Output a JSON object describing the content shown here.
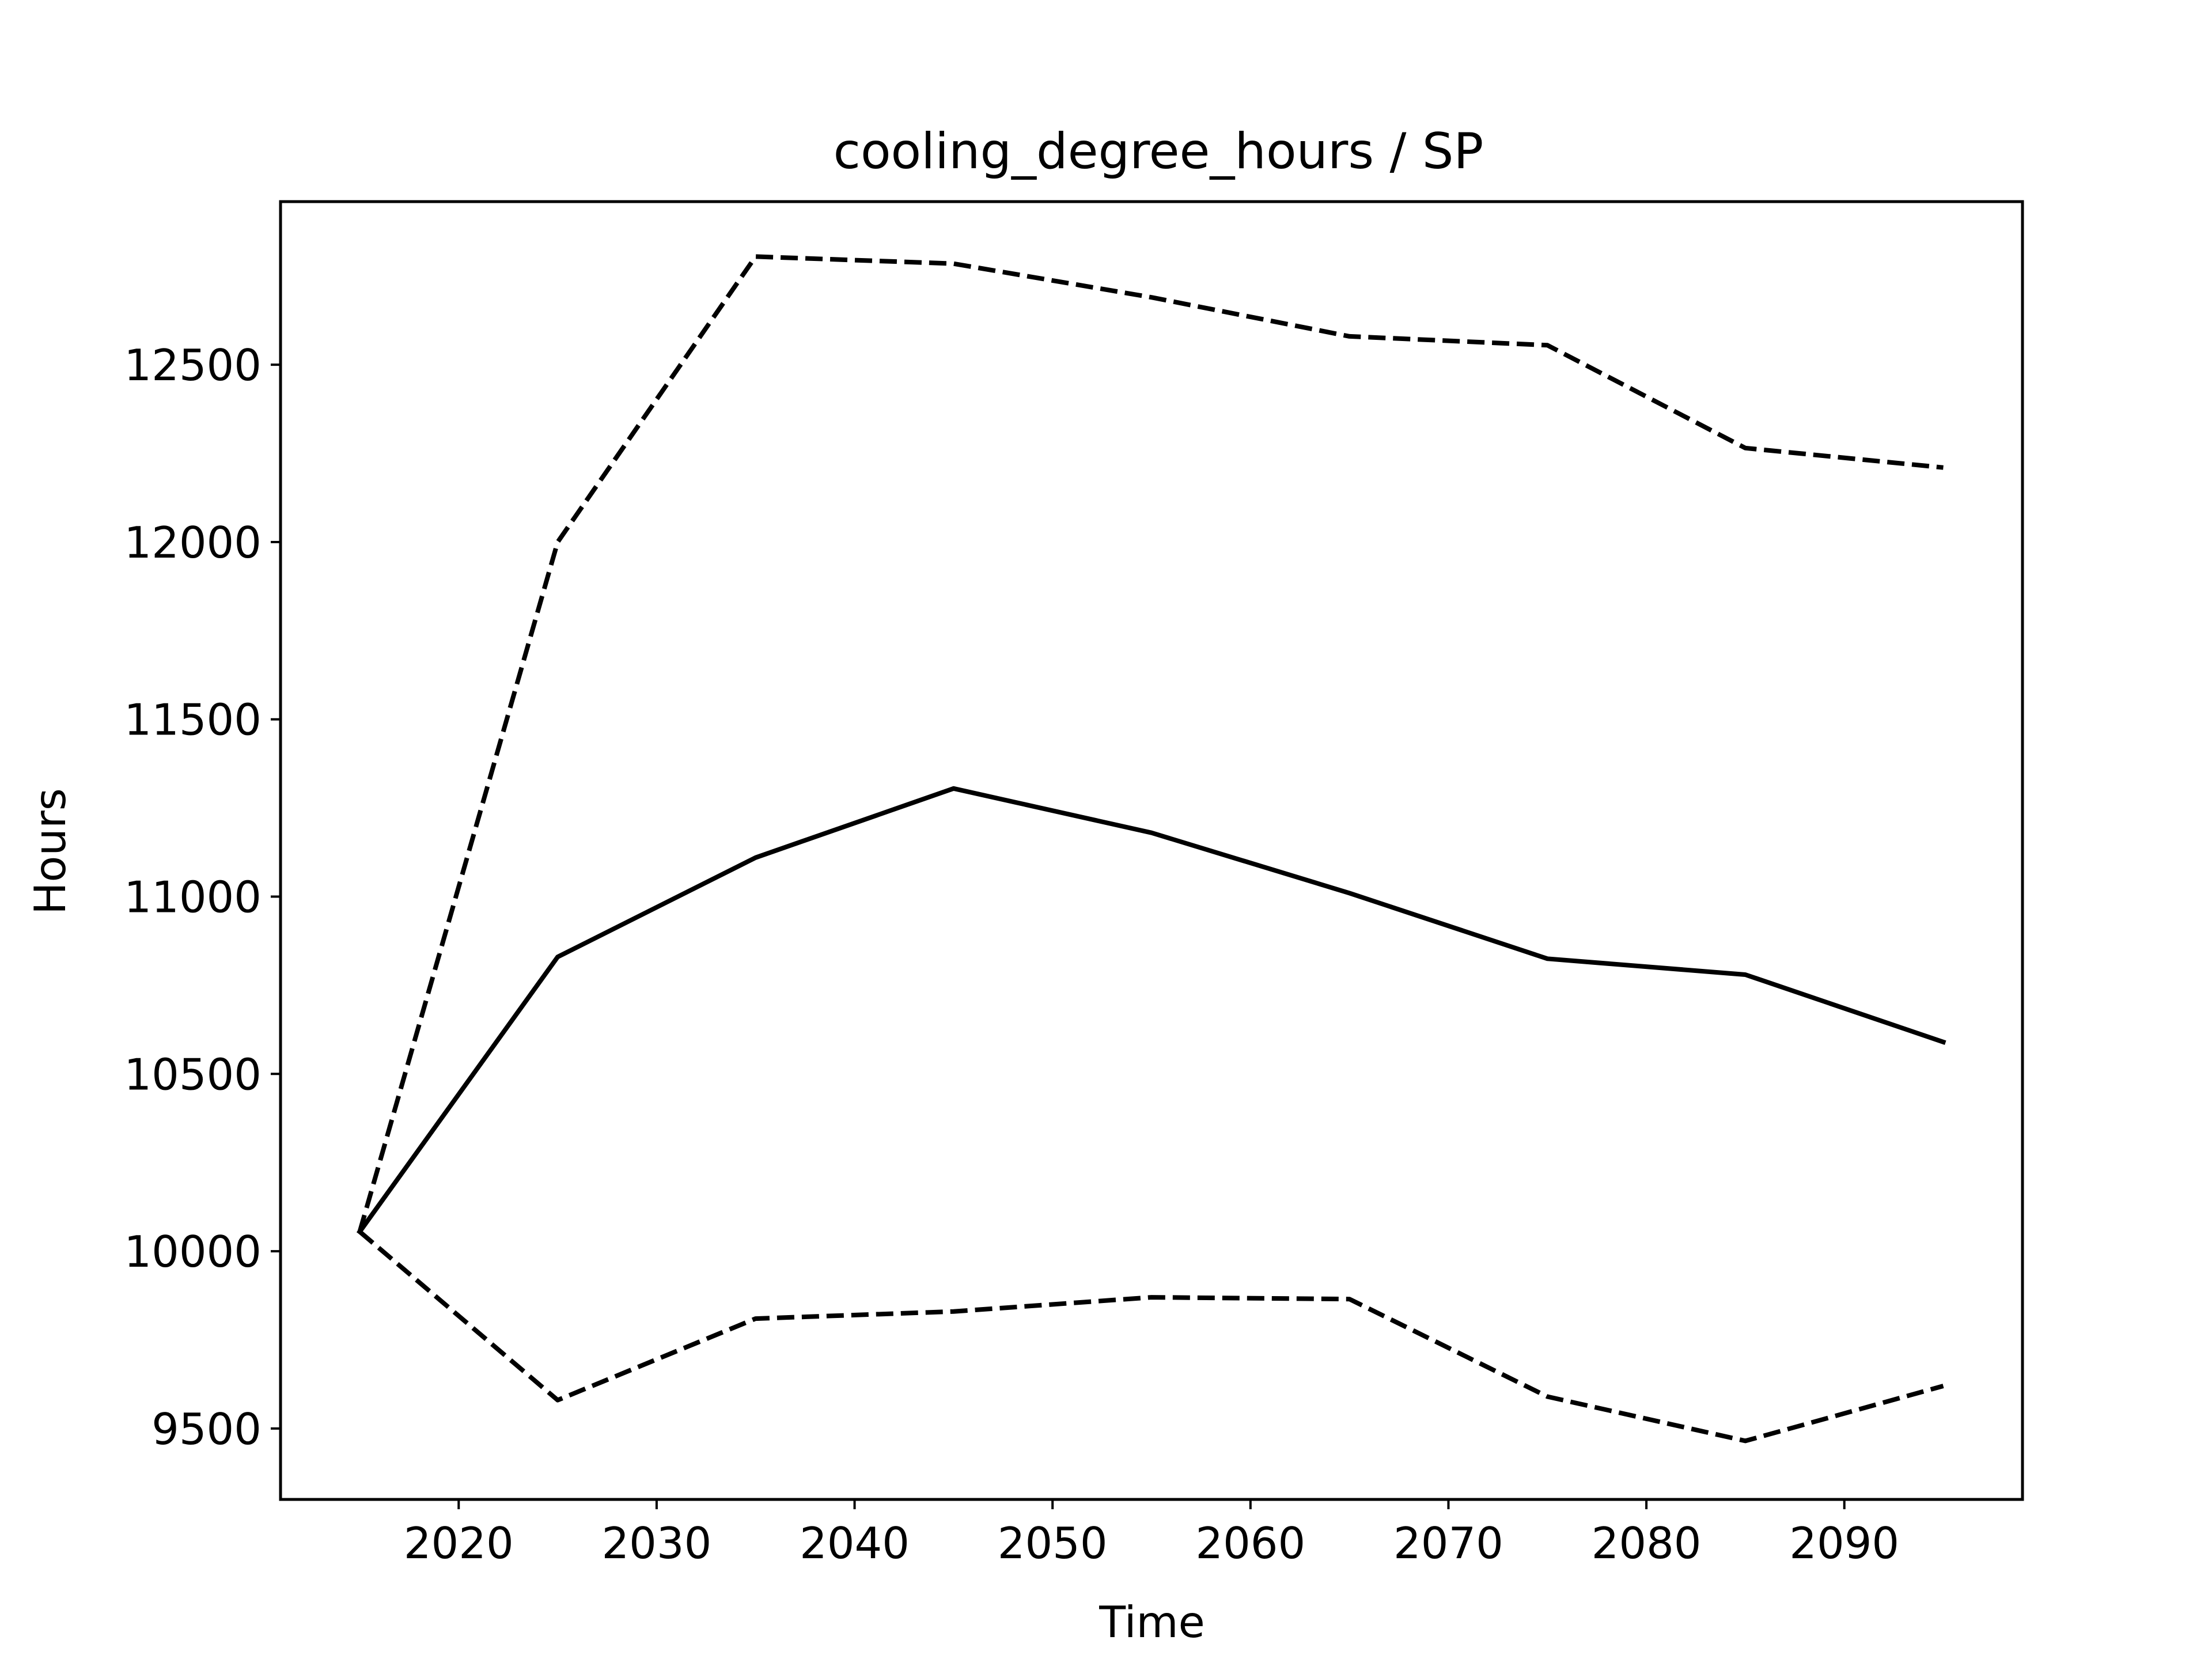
{
  "chart_data": {
    "type": "line",
    "title": "cooling_degree_hours / SP",
    "xlabel": "Time",
    "ylabel": "Hours",
    "xlim": [
      2011,
      2099
    ],
    "ylim": [
      9300,
      12960
    ],
    "x_ticks": [
      2020,
      2030,
      2040,
      2050,
      2060,
      2070,
      2080,
      2090
    ],
    "y_ticks": [
      9500,
      10000,
      10500,
      11000,
      11500,
      12000,
      12500
    ],
    "grid": false,
    "x": [
      2015,
      2025,
      2035,
      2045,
      2055,
      2065,
      2075,
      2085,
      2095
    ],
    "series": [
      {
        "values": [
          10055,
          10830,
          11110,
          11305,
          11180,
          11010,
          10825,
          10780,
          10590
        ],
        "line_style": "solid",
        "color": "#000000"
      },
      {
        "values": [
          10055,
          12000,
          12805,
          12785,
          12690,
          12580,
          12555,
          12265,
          12210
        ],
        "line_style": "dashed",
        "color": "#000000"
      },
      {
        "values": [
          10055,
          9580,
          9810,
          9830,
          9870,
          9865,
          9590,
          9465,
          9620
        ],
        "line_style": "dashed",
        "color": "#000000"
      }
    ]
  }
}
